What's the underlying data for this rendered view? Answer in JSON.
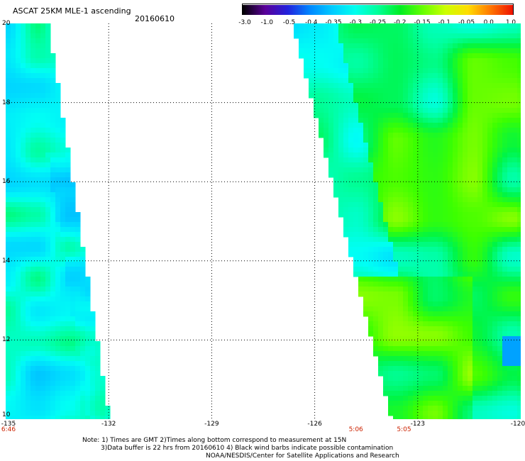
{
  "header": {
    "title": "ASCAT 25KM MLE-1 ascending",
    "date": "20160610"
  },
  "colorbar": {
    "labels": [
      "-3.0",
      "-1.0",
      "-0.5",
      "-0.4",
      "-0.35",
      "-0.3",
      "-0.25",
      "-0.2",
      "-0.15",
      "-0.1",
      "-0.05",
      "0.0",
      "1.0"
    ],
    "colors": [
      "#000000",
      "#5a0099",
      "#2222dd",
      "#0088ff",
      "#00ccff",
      "#00ffee",
      "#00ff99",
      "#00ee22",
      "#66ff00",
      "#ccff00",
      "#ffdd00",
      "#ff7700",
      "#ee1100"
    ]
  },
  "map": {
    "y_axis_labels": [
      "20",
      "18",
      "16",
      "14",
      "12",
      "10"
    ],
    "x_axis_labels": [
      "-135",
      "-132",
      "-129",
      "-126",
      "-123",
      "-120"
    ],
    "time_labels": [
      "6:46",
      "5:06",
      "5:05"
    ]
  },
  "chart_data": {
    "type": "heatmap",
    "title": "ASCAT 25KM MLE-1 ascending",
    "xlim": [
      -135,
      -120
    ],
    "ylim": [
      10,
      20
    ],
    "grid": true,
    "swaths": [
      {
        "name": "west",
        "lon_range": [
          -135,
          -132
        ],
        "dominant_range": [
          -0.3,
          -0.25
        ],
        "lowest": -0.4
      },
      {
        "name": "east",
        "lon_range": [
          -126,
          -120
        ],
        "dominant_range": [
          -0.2,
          -0.1
        ],
        "lowest": -0.35
      }
    ],
    "time_markers": [
      {
        "lon": -135,
        "time": "6:46"
      },
      {
        "lon": -124.8,
        "time": "5:06"
      },
      {
        "lon": -123.4,
        "time": "5:05"
      }
    ]
  },
  "notes": {
    "line1": "Note: 1) Times are GMT 2)Times along bottom correspond to measurement at 15N",
    "line2": "3)Data buffer is 22 hrs from 20160610 4) Black wind barbs indicate possible contamination",
    "line3": "NOAA/NESDIS/Center for Satellite Applications and Research"
  }
}
